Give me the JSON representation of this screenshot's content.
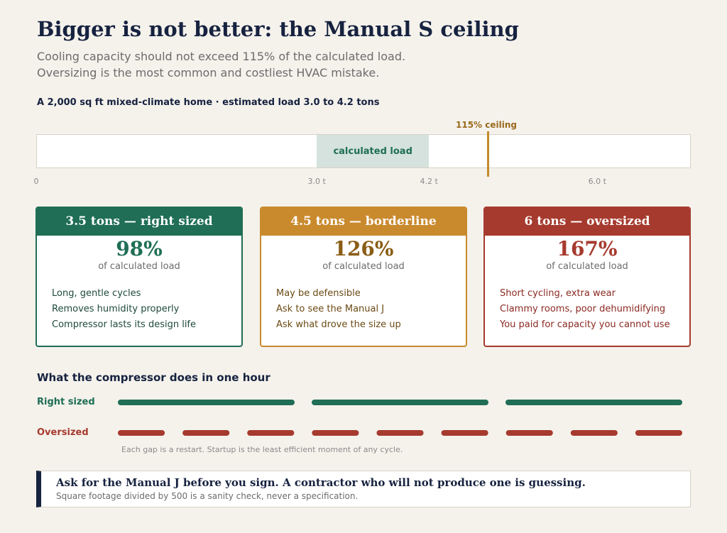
{
  "header": {
    "title": "Bigger is not better: the Manual S ceiling",
    "subtitle_line1": "Cooling capacity should not exceed 115% of the calculated load.",
    "subtitle_line2": "Oversizing is the most common and costliest HVAC mistake.",
    "context": "A 2,000 sq ft mixed-climate home · estimated load 3.0 to 4.2 tons"
  },
  "load_scale": {
    "scale_max_tons": 7.0,
    "calc_band_label": "calculated load",
    "calc_min_tons": 3.0,
    "calc_max_tons": 4.2,
    "ceiling_label": "115% ceiling",
    "ceiling_tons": 4.83,
    "ticks": [
      {
        "label": "0",
        "tons": 0
      },
      {
        "label": "3.0 t",
        "tons": 3.0
      },
      {
        "label": "4.2 t",
        "tons": 4.2
      },
      {
        "label": "6.0 t",
        "tons": 6.0
      }
    ]
  },
  "cards": [
    {
      "variant": "green",
      "heading": "3.5 tons — right sized",
      "percent": "98%",
      "percent_sub": "of calculated load",
      "points": [
        "Long, gentle cycles",
        "Removes humidity properly",
        "Compressor lasts its design life"
      ]
    },
    {
      "variant": "amber",
      "heading": "4.5 tons — borderline",
      "percent": "126%",
      "percent_sub": "of calculated load",
      "points": [
        "May be defensible",
        "Ask to see the Manual J",
        "Ask what drove the size up"
      ]
    },
    {
      "variant": "red",
      "heading": "6 tons — oversized",
      "percent": "167%",
      "percent_sub": "of calculated load",
      "points": [
        "Short cycling, extra wear",
        "Clammy rooms, poor dehumidifying",
        "You paid for capacity you cannot use"
      ]
    }
  ],
  "compressor": {
    "title": "What the compressor does in one hour",
    "right_label": "Right sized",
    "over_label": "Oversized",
    "right_cycles": 3,
    "over_cycles": 9,
    "note": "Each gap is a restart. Startup is the least efficient moment of any cycle.",
    "colors": {
      "right": "#1f6e55",
      "over": "#a63a2e"
    }
  },
  "callout": {
    "main": "Ask for the Manual J before you sign. A contractor who will not produce one is guessing.",
    "sub": "Square footage divided by 500 is a sanity check, never a specification."
  }
}
